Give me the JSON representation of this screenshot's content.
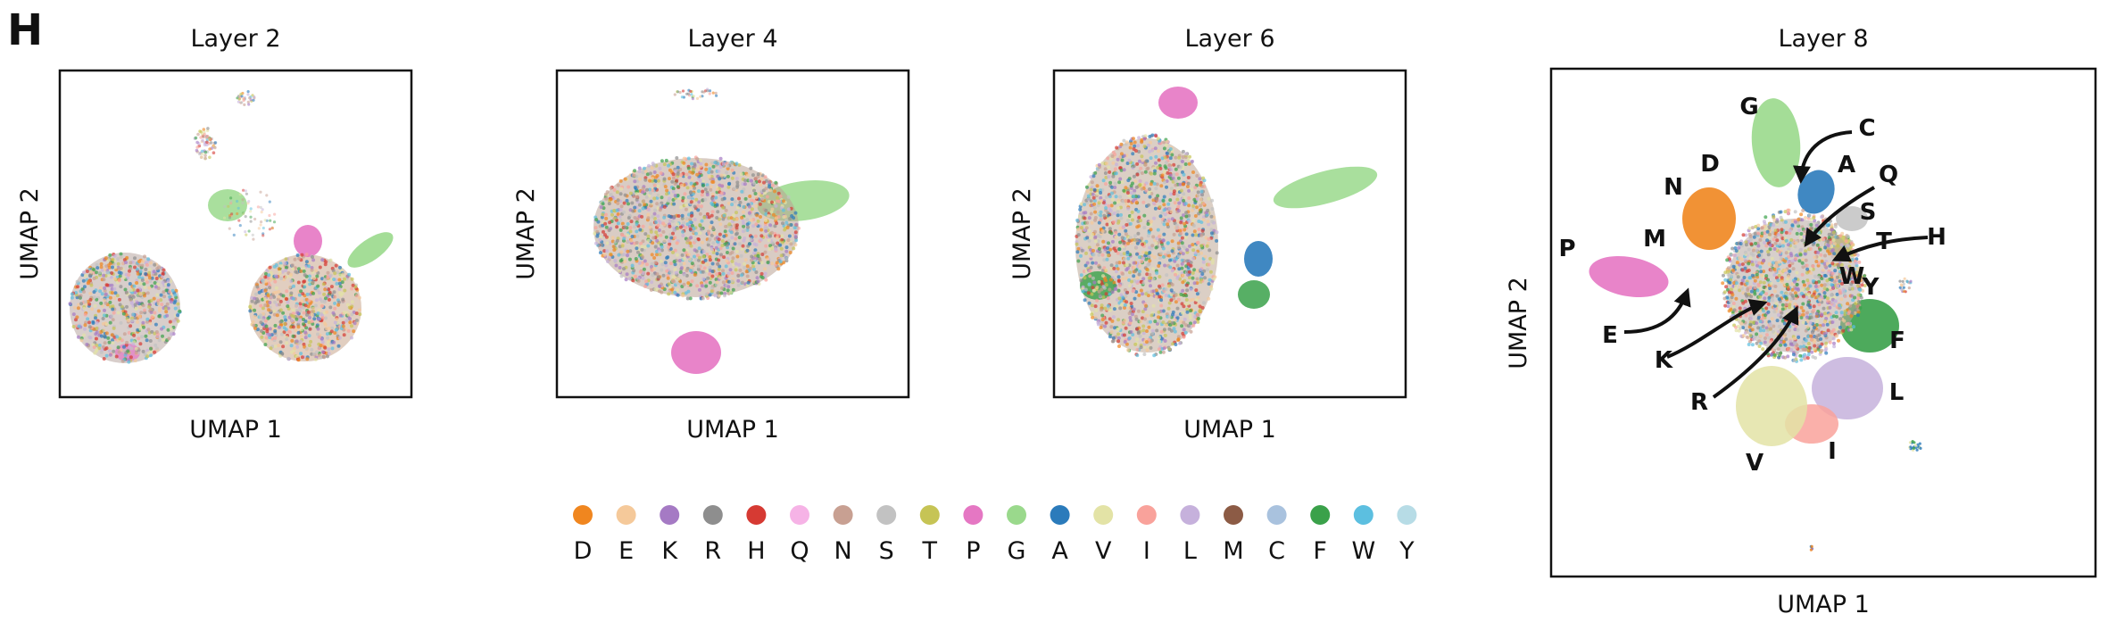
{
  "panel_label": "H",
  "axis_labels": {
    "x": "UMAP 1",
    "y": "UMAP 2"
  },
  "legend": {
    "items": [
      {
        "label": "D",
        "color": "#f0861f"
      },
      {
        "label": "E",
        "color": "#f5c99a"
      },
      {
        "label": "K",
        "color": "#a57ac4"
      },
      {
        "label": "R",
        "color": "#8e8e8e"
      },
      {
        "label": "H",
        "color": "#d63a33"
      },
      {
        "label": "Q",
        "color": "#f6b3e6"
      },
      {
        "label": "N",
        "color": "#c8a092"
      },
      {
        "label": "S",
        "color": "#c2c2c2"
      },
      {
        "label": "T",
        "color": "#c6c455"
      },
      {
        "label": "P",
        "color": "#e577c3"
      },
      {
        "label": "G",
        "color": "#9ad98c"
      },
      {
        "label": "A",
        "color": "#2b7bbb"
      },
      {
        "label": "V",
        "color": "#e3e3a6"
      },
      {
        "label": "I",
        "color": "#f9a29b"
      },
      {
        "label": "L",
        "color": "#c6b1dc"
      },
      {
        "label": "M",
        "color": "#8c5b45"
      },
      {
        "label": "C",
        "color": "#a9c2de"
      },
      {
        "label": "F",
        "color": "#3aa14a"
      },
      {
        "label": "W",
        "color": "#5cbfe0"
      },
      {
        "label": "Y",
        "color": "#b7dce6"
      }
    ]
  },
  "chart_data": [
    {
      "type": "scatter",
      "title": "Layer 2",
      "xlabel": "UMAP 1",
      "ylabel": "UMAP 2",
      "grid": false,
      "note_clusters": [
        "mixed left lobe",
        "mixed right lobe",
        "G arm",
        "P blob"
      ]
    },
    {
      "type": "scatter",
      "title": "Layer 4",
      "xlabel": "UMAP 1",
      "ylabel": "UMAP 2",
      "grid": false
    },
    {
      "type": "scatter",
      "title": "Layer 6",
      "xlabel": "UMAP 1",
      "ylabel": "UMAP 2",
      "grid": false
    },
    {
      "type": "scatter",
      "title": "Layer 8",
      "xlabel": "UMAP 1",
      "ylabel": "UMAP 2",
      "grid": false,
      "annotations": [
        "G",
        "C",
        "D",
        "N",
        "A",
        "Q",
        "S",
        "M",
        "P",
        "H",
        "T",
        "W",
        "Y",
        "E",
        "F",
        "K",
        "L",
        "R",
        "I",
        "V"
      ]
    }
  ]
}
